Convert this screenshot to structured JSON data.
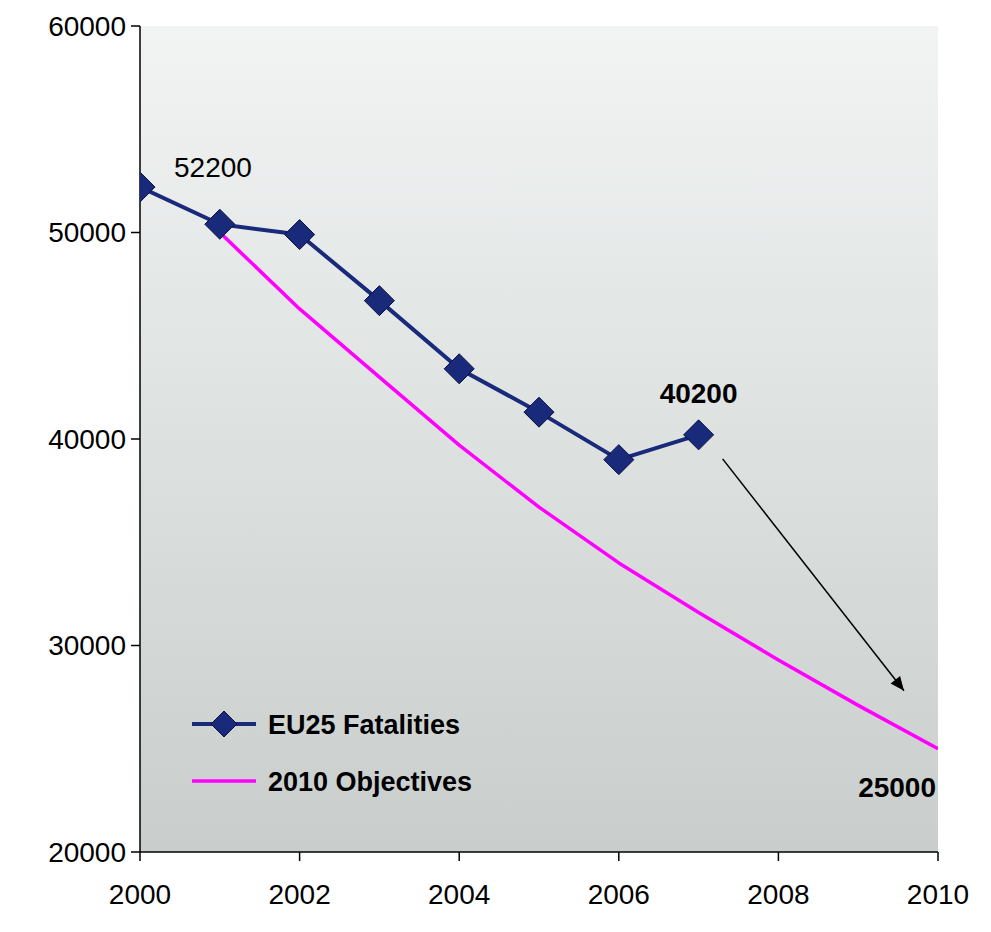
{
  "chart_data": {
    "type": "line",
    "x": [
      2000,
      2001,
      2002,
      2003,
      2004,
      2005,
      2006,
      2007,
      2008,
      2009,
      2010
    ],
    "series": [
      {
        "name": "EU25 Fatalities",
        "color": "#1a2a7a",
        "marker": "diamond",
        "line_style": "solid",
        "values": [
          52200,
          50400,
          49900,
          46700,
          43400,
          41300,
          39000,
          40200,
          null,
          null,
          null
        ]
      },
      {
        "name": "2010 Objectives",
        "color": "#ff00ff",
        "line_style": "solid",
        "values": [
          null,
          50000,
          46300,
          43000,
          39700,
          36700,
          34000,
          31600,
          29300,
          27100,
          25000
        ]
      }
    ],
    "xlim": [
      2000,
      2010
    ],
    "xticks": [
      2000,
      2002,
      2004,
      2006,
      2008,
      2010
    ],
    "ylim": [
      20000,
      60000
    ],
    "yticks": [
      20000,
      30000,
      40000,
      50000,
      60000
    ],
    "grid": false,
    "legend": "lower left",
    "annotations": [
      {
        "text": "52200",
        "x": 2000,
        "y": 52200
      },
      {
        "text": "40200",
        "x": 2007,
        "y": 40200
      },
      {
        "text": "25000",
        "x": 2010,
        "y": 25000
      }
    ]
  }
}
